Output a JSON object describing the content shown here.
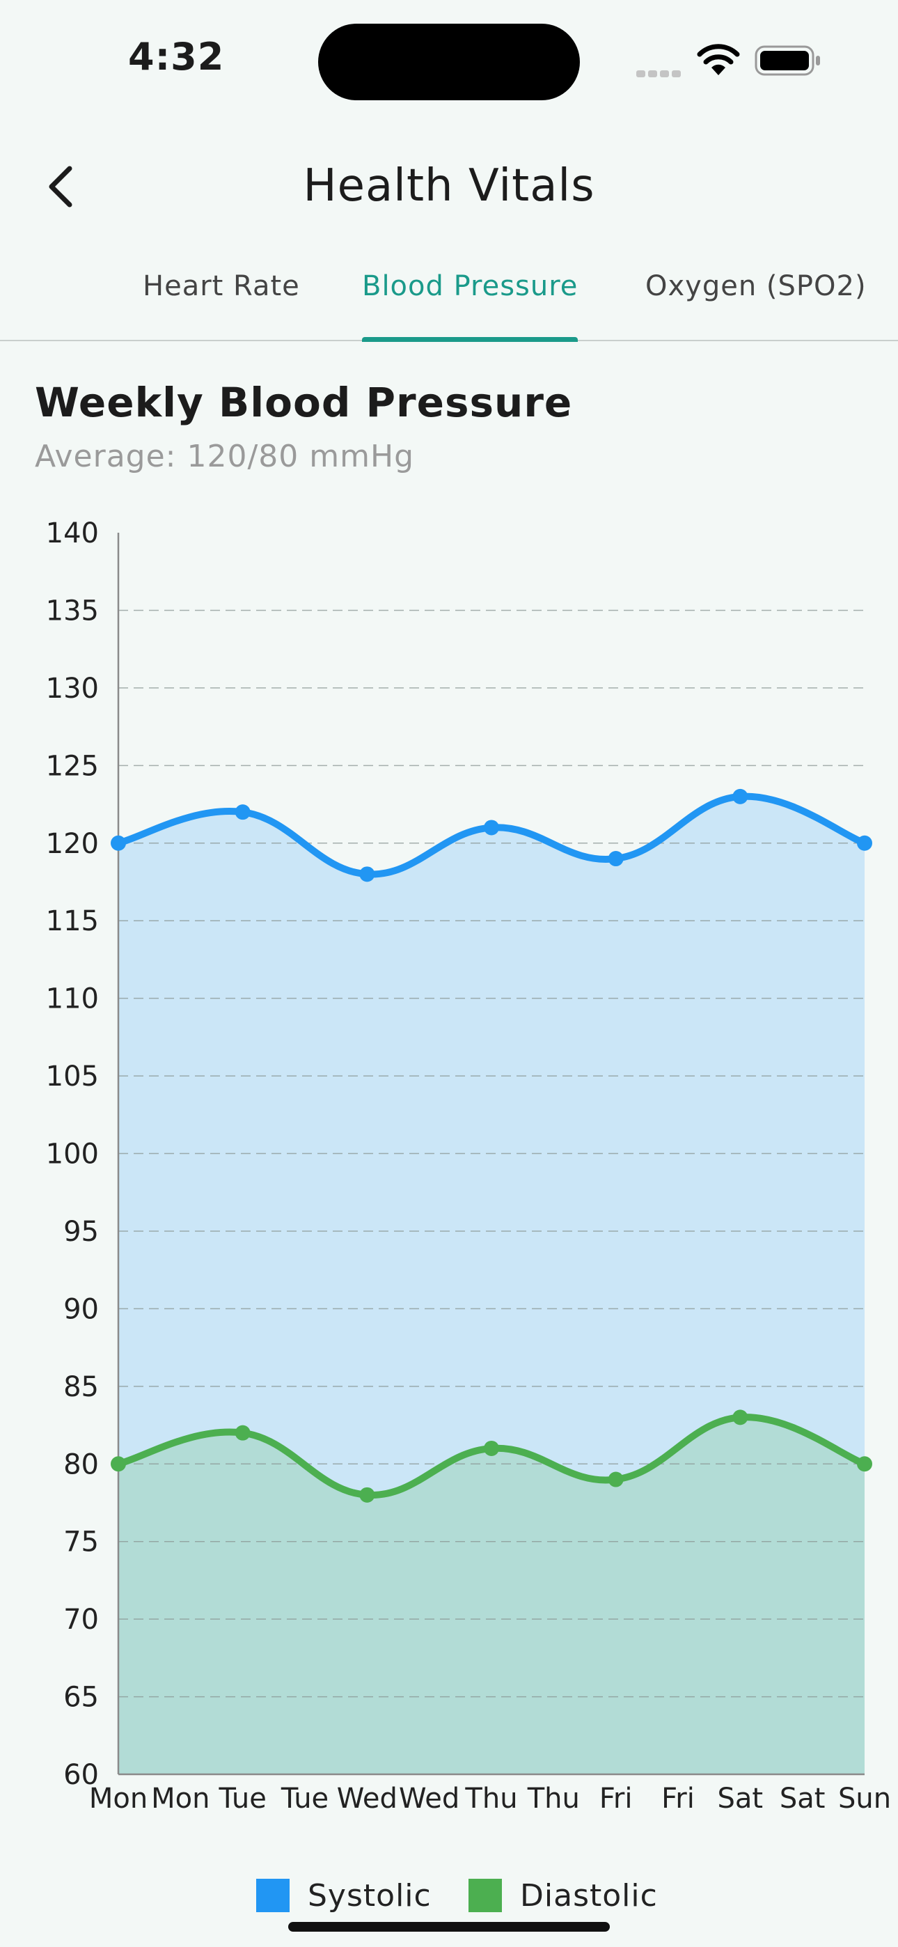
{
  "status_bar": {
    "time": "4:32"
  },
  "header": {
    "title": "Health Vitals"
  },
  "tabs": [
    {
      "label": "Heart Rate",
      "active": false
    },
    {
      "label": "Blood Pressure",
      "active": true
    },
    {
      "label": "Oxygen (SPO2)",
      "active": false
    }
  ],
  "colors": {
    "accent": "#1a9a8a",
    "systolic": "#2196f3",
    "diastolic": "#4caf50",
    "systolic_fill": "#cbe6f7",
    "diastolic_fill": "#b2dcd6"
  },
  "chart_data": {
    "type": "area",
    "title": "Weekly Blood Pressure",
    "subtitle": "Average: 120/80 mmHg",
    "x_ticks": [
      "Mon",
      "Mon",
      "Tue",
      "Tue",
      "Wed",
      "Wed",
      "Thu",
      "Thu",
      "Fri",
      "Fri",
      "Sat",
      "Sat",
      "Sun"
    ],
    "x": [
      "Mon",
      "Tue",
      "Wed",
      "Thu",
      "Fri",
      "Sat",
      "Sun"
    ],
    "series": [
      {
        "name": "Systolic",
        "values": [
          120,
          122,
          118,
          121,
          119,
          123,
          120
        ]
      },
      {
        "name": "Diastolic",
        "values": [
          80,
          82,
          78,
          81,
          79,
          83,
          80
        ]
      }
    ],
    "ylim": [
      60,
      140
    ],
    "y_ticks": [
      60,
      65,
      70,
      75,
      80,
      85,
      90,
      95,
      100,
      105,
      110,
      115,
      120,
      125,
      130,
      135,
      140
    ],
    "grid": true,
    "legend": "bottom"
  }
}
